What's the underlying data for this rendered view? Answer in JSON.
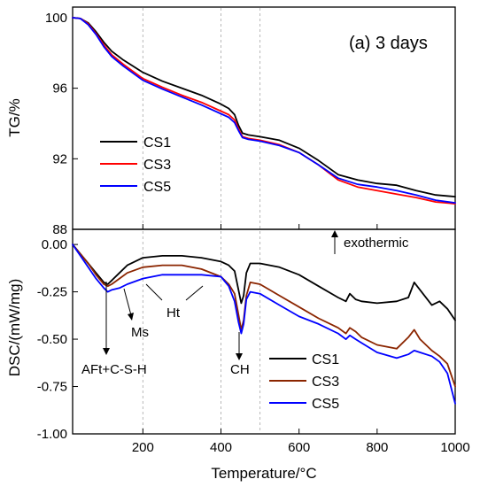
{
  "chart_data": {
    "type": "line",
    "xlabel": "Temperature/°C",
    "xlim": [
      20,
      1000
    ],
    "xticks": [
      200,
      400,
      600,
      800,
      1000
    ],
    "reference_lines_x": [
      200,
      400,
      500
    ],
    "panels": [
      {
        "id": "tg",
        "title": "(a) 3 days",
        "ylabel": "TG/%",
        "ylim": [
          88,
          100.6
        ],
        "yticks": [
          88,
          92,
          96,
          100
        ],
        "ytick_labels": [
          "88",
          "92",
          "96",
          "100"
        ],
        "legend": "lower-left",
        "series": [
          {
            "name": "CS1",
            "color": "#000000",
            "x": [
              20,
              40,
              60,
              80,
              100,
              120,
              150,
              200,
              250,
              300,
              350,
              400,
              420,
              435,
              445,
              455,
              470,
              500,
              550,
              600,
              650,
              700,
              750,
              800,
              850,
              900,
              950,
              1000
            ],
            "y": [
              100.0,
              99.95,
              99.7,
              99.2,
              98.6,
              98.1,
              97.6,
              96.9,
              96.4,
              96.0,
              95.6,
              95.1,
              94.85,
              94.5,
              93.9,
              93.45,
              93.35,
              93.25,
              93.05,
              92.6,
              91.9,
              91.1,
              90.8,
              90.6,
              90.5,
              90.2,
              89.95,
              89.85
            ]
          },
          {
            "name": "CS3",
            "color": "#ff0000",
            "x": [
              20,
              40,
              60,
              80,
              100,
              120,
              150,
              200,
              250,
              300,
              350,
              400,
              420,
              435,
              445,
              455,
              470,
              500,
              550,
              600,
              650,
              700,
              750,
              800,
              850,
              900,
              950,
              1000
            ],
            "y": [
              100.0,
              99.95,
              99.65,
              99.1,
              98.45,
              97.9,
              97.35,
              96.55,
              96.05,
              95.6,
              95.2,
              94.7,
              94.5,
              94.2,
              93.7,
              93.25,
              93.15,
              93.05,
              92.8,
              92.35,
              91.65,
              90.8,
              90.4,
              90.2,
              90.0,
              89.8,
              89.55,
              89.45
            ]
          },
          {
            "name": "CS5",
            "color": "#0000ff",
            "x": [
              20,
              40,
              60,
              80,
              100,
              120,
              150,
              200,
              250,
              300,
              350,
              400,
              420,
              435,
              445,
              455,
              470,
              500,
              550,
              600,
              650,
              700,
              750,
              800,
              850,
              900,
              950,
              1000
            ],
            "y": [
              100.0,
              99.95,
              99.6,
              99.05,
              98.35,
              97.8,
              97.25,
              96.45,
              95.95,
              95.5,
              95.05,
              94.55,
              94.35,
              94.05,
              93.6,
              93.2,
              93.1,
              93.0,
              92.75,
              92.35,
              91.65,
              90.9,
              90.55,
              90.4,
              90.2,
              89.95,
              89.65,
              89.5
            ]
          }
        ]
      },
      {
        "id": "dsc",
        "ylabel": "DSC/(mW/mg)",
        "ylim": [
          -1.0,
          0.08
        ],
        "yticks": [
          -1.0,
          -0.75,
          -0.5,
          -0.25,
          0.0
        ],
        "ytick_labels": [
          "-1.00",
          "-0.75",
          "-0.50",
          "-0.25",
          "0.00"
        ],
        "legend": "lower-right",
        "annotations": {
          "exothermic": "exothermic",
          "aft": "AFt+C-S-H",
          "ms": "Ms",
          "ht": "Ht",
          "ch": "CH"
        },
        "series": [
          {
            "name": "CS1",
            "color": "#000000",
            "x": [
              20,
              40,
              60,
              80,
              100,
              110,
              120,
              140,
              160,
              200,
              250,
              300,
              350,
              400,
              420,
              435,
              445,
              452,
              458,
              465,
              475,
              500,
              550,
              600,
              650,
              700,
              720,
              730,
              745,
              760,
              800,
              850,
              880,
              895,
              910,
              940,
              960,
              980,
              1000
            ],
            "y": [
              0.0,
              -0.05,
              -0.1,
              -0.15,
              -0.2,
              -0.21,
              -0.19,
              -0.15,
              -0.11,
              -0.07,
              -0.06,
              -0.06,
              -0.07,
              -0.09,
              -0.11,
              -0.14,
              -0.24,
              -0.31,
              -0.27,
              -0.15,
              -0.1,
              -0.1,
              -0.12,
              -0.16,
              -0.22,
              -0.28,
              -0.3,
              -0.26,
              -0.29,
              -0.3,
              -0.31,
              -0.3,
              -0.28,
              -0.2,
              -0.24,
              -0.32,
              -0.3,
              -0.34,
              -0.4
            ]
          },
          {
            "name": "CS3",
            "color": "#8b2500",
            "x": [
              20,
              40,
              60,
              80,
              100,
              110,
              120,
              140,
              160,
              200,
              250,
              300,
              350,
              400,
              420,
              435,
              445,
              452,
              458,
              465,
              475,
              500,
              550,
              600,
              650,
              700,
              720,
              730,
              745,
              760,
              800,
              850,
              880,
              895,
              910,
              940,
              960,
              980,
              1000
            ],
            "y": [
              0.0,
              -0.05,
              -0.1,
              -0.16,
              -0.21,
              -0.22,
              -0.21,
              -0.18,
              -0.15,
              -0.12,
              -0.11,
              -0.11,
              -0.13,
              -0.17,
              -0.21,
              -0.26,
              -0.37,
              -0.45,
              -0.4,
              -0.27,
              -0.2,
              -0.21,
              -0.27,
              -0.33,
              -0.39,
              -0.44,
              -0.47,
              -0.44,
              -0.46,
              -0.49,
              -0.53,
              -0.55,
              -0.49,
              -0.45,
              -0.5,
              -0.56,
              -0.59,
              -0.63,
              -0.75
            ]
          },
          {
            "name": "CS5",
            "color": "#0000ff",
            "x": [
              20,
              40,
              60,
              80,
              100,
              110,
              120,
              140,
              160,
              200,
              250,
              300,
              350,
              400,
              420,
              435,
              445,
              452,
              458,
              465,
              475,
              500,
              550,
              600,
              650,
              700,
              720,
              730,
              745,
              760,
              800,
              850,
              880,
              895,
              910,
              940,
              960,
              980,
              1000
            ],
            "y": [
              0.0,
              -0.06,
              -0.12,
              -0.18,
              -0.23,
              -0.25,
              -0.24,
              -0.23,
              -0.21,
              -0.18,
              -0.16,
              -0.16,
              -0.16,
              -0.17,
              -0.22,
              -0.3,
              -0.41,
              -0.47,
              -0.42,
              -0.29,
              -0.25,
              -0.26,
              -0.32,
              -0.38,
              -0.42,
              -0.47,
              -0.5,
              -0.48,
              -0.5,
              -0.52,
              -0.57,
              -0.6,
              -0.58,
              -0.56,
              -0.57,
              -0.59,
              -0.62,
              -0.68,
              -0.84
            ]
          }
        ]
      }
    ]
  }
}
